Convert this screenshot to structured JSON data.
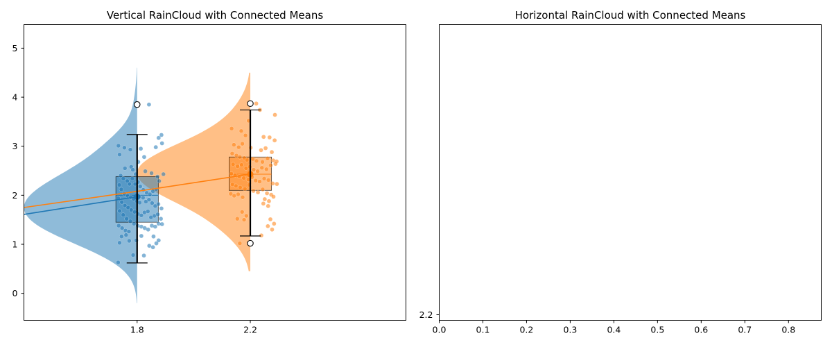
{
  "chart_data": [
    {
      "type": "raincloud",
      "orientation": "vertical",
      "title": "Vertical RainCloud with Connected Means",
      "x_ticks": [
        "1.8",
        "2.2"
      ],
      "xlim": [
        1.4,
        2.75
      ],
      "ylim": [
        -0.55,
        5.48
      ],
      "y_ticks": [
        "0",
        "1",
        "2",
        "3",
        "4",
        "5"
      ],
      "colors": [
        "#1f77b4",
        "#ff7f0e"
      ],
      "groups": [
        {
          "x": 1.8,
          "color": "#1f77b4",
          "mean": 1.97,
          "box": {
            "q1": 1.45,
            "median": 2.0,
            "q3": 2.38,
            "whisker_low": 0.62,
            "whisker_high": 3.24
          },
          "outliers": [
            3.85
          ],
          "violin_ylim": [
            -0.2,
            4.6
          ],
          "points": [
            [
              1.734,
              3.01
            ],
            [
              1.776,
              2.93
            ],
            [
              1.866,
              2.98
            ],
            [
              1.886,
              3.23
            ],
            [
              1.888,
              3.06
            ],
            [
              1.755,
              2.97
            ],
            [
              1.738,
              2.83
            ],
            [
              1.813,
              2.95
            ],
            [
              1.825,
              2.78
            ],
            [
              1.876,
              3.17
            ],
            [
              1.779,
              2.58
            ],
            [
              1.757,
              2.55
            ],
            [
              1.785,
              2.52
            ],
            [
              1.804,
              2.68
            ],
            [
              1.851,
              2.45
            ],
            [
              1.872,
              2.38
            ],
            [
              1.893,
              2.43
            ],
            [
              1.742,
              2.4
            ],
            [
              1.751,
              2.34
            ],
            [
              1.765,
              2.29
            ],
            [
              1.773,
              2.23
            ],
            [
              1.783,
              2.34
            ],
            [
              1.795,
              2.43
            ],
            [
              1.803,
              2.27
            ],
            [
              1.811,
              2.18
            ],
            [
              1.822,
              2.11
            ],
            [
              1.834,
              2.05
            ],
            [
              1.845,
              2.02
            ],
            [
              1.856,
              2.08
            ],
            [
              1.867,
              2.12
            ],
            [
              1.878,
              2.29
            ],
            [
              1.737,
              2.21
            ],
            [
              1.744,
              2.12
            ],
            [
              1.755,
              2.03
            ],
            [
              1.766,
              1.99
            ],
            [
              1.777,
              1.96
            ],
            [
              1.788,
              1.92
            ],
            [
              1.799,
              1.88
            ],
            [
              1.809,
              1.85
            ],
            [
              1.821,
              1.95
            ],
            [
              1.831,
              1.87
            ],
            [
              1.842,
              1.91
            ],
            [
              1.853,
              1.84
            ],
            [
              1.864,
              1.78
            ],
            [
              1.875,
              1.82
            ],
            [
              1.886,
              1.73
            ],
            [
              1.733,
              1.94
            ],
            [
              1.746,
              1.86
            ],
            [
              1.757,
              1.79
            ],
            [
              1.768,
              1.75
            ],
            [
              1.779,
              1.7
            ],
            [
              1.791,
              1.66
            ],
            [
              1.803,
              1.62
            ],
            [
              1.815,
              1.59
            ],
            [
              1.826,
              1.65
            ],
            [
              1.838,
              1.67
            ],
            [
              1.849,
              1.55
            ],
            [
              1.861,
              1.58
            ],
            [
              1.873,
              1.61
            ],
            [
              1.884,
              1.52
            ],
            [
              1.738,
              1.68
            ],
            [
              1.751,
              1.6
            ],
            [
              1.763,
              1.52
            ],
            [
              1.776,
              1.47
            ],
            [
              1.789,
              1.42
            ],
            [
              1.802,
              1.38
            ],
            [
              1.815,
              1.36
            ],
            [
              1.827,
              1.33
            ],
            [
              1.839,
              1.3
            ],
            [
              1.852,
              1.38
            ],
            [
              1.864,
              1.36
            ],
            [
              1.876,
              1.42
            ],
            [
              1.888,
              1.41
            ],
            [
              1.735,
              1.38
            ],
            [
              1.747,
              1.33
            ],
            [
              1.759,
              1.28
            ],
            [
              1.771,
              1.26
            ],
            [
              1.745,
              1.16
            ],
            [
              1.761,
              1.19
            ],
            [
              1.797,
              1.08
            ],
            [
              1.815,
              1.17
            ],
            [
              1.858,
              1.16
            ],
            [
              1.876,
              1.08
            ],
            [
              1.738,
              1.03
            ],
            [
              1.772,
              1.07
            ],
            [
              1.843,
              0.97
            ],
            [
              1.856,
              0.94
            ],
            [
              1.868,
              1.02
            ],
            [
              1.786,
              0.78
            ],
            [
              1.824,
              0.77
            ],
            [
              1.733,
              0.63
            ],
            [
              1.842,
              3.85
            ],
            [
              1.829,
              2.49
            ],
            [
              1.793,
              2.23
            ],
            [
              1.807,
              1.97
            ]
          ]
        },
        {
          "x": 2.2,
          "color": "#ff7f0e",
          "mean": 2.43,
          "box": {
            "q1": 2.1,
            "median": 2.43,
            "q3": 2.78,
            "whisker_low": 1.17,
            "whisker_high": 3.74
          },
          "outliers": [
            3.87,
            1.02
          ],
          "violin_ylim": [
            0.45,
            4.5
          ],
          "points": [
            [
              2.221,
              3.87
            ],
            [
              2.234,
              3.74
            ],
            [
              2.287,
              3.64
            ],
            [
              2.194,
              3.52
            ],
            [
              2.134,
              3.36
            ],
            [
              2.168,
              3.31
            ],
            [
              2.183,
              3.22
            ],
            [
              2.247,
              3.19
            ],
            [
              2.268,
              3.18
            ],
            [
              2.286,
              3.12
            ],
            [
              2.142,
              3.03
            ],
            [
              2.159,
              2.98
            ],
            [
              2.172,
              3.05
            ],
            [
              2.201,
              2.97
            ],
            [
              2.238,
              2.92
            ],
            [
              2.254,
              2.96
            ],
            [
              2.276,
              2.88
            ],
            [
              2.136,
              2.85
            ],
            [
              2.151,
              2.81
            ],
            [
              2.163,
              2.78
            ],
            [
              2.179,
              2.76
            ],
            [
              2.188,
              2.72
            ],
            [
              2.209,
              2.74
            ],
            [
              2.222,
              2.7
            ],
            [
              2.243,
              2.68
            ],
            [
              2.261,
              2.75
            ],
            [
              2.281,
              2.71
            ],
            [
              2.293,
              2.69
            ],
            [
              2.139,
              2.63
            ],
            [
              2.155,
              2.59
            ],
            [
              2.169,
              2.62
            ],
            [
              2.185,
              2.55
            ],
            [
              2.198,
              2.58
            ],
            [
              2.212,
              2.52
            ],
            [
              2.226,
              2.49
            ],
            [
              2.241,
              2.56
            ],
            [
              2.257,
              2.53
            ],
            [
              2.272,
              2.61
            ],
            [
              2.289,
              2.64
            ],
            [
              2.133,
              2.44
            ],
            [
              2.146,
              2.41
            ],
            [
              2.161,
              2.38
            ],
            [
              2.177,
              2.35
            ],
            [
              2.193,
              2.32
            ],
            [
              2.206,
              2.37
            ],
            [
              2.219,
              2.3
            ],
            [
              2.233,
              2.28
            ],
            [
              2.249,
              2.34
            ],
            [
              2.264,
              2.31
            ],
            [
              2.279,
              2.24
            ],
            [
              2.294,
              2.23
            ],
            [
              2.137,
              2.22
            ],
            [
              2.149,
              2.19
            ],
            [
              2.164,
              2.16
            ],
            [
              2.181,
              2.13
            ],
            [
              2.196,
              2.21
            ],
            [
              2.211,
              2.09
            ],
            [
              2.227,
              2.06
            ],
            [
              2.244,
              2.12
            ],
            [
              2.259,
              2.04
            ],
            [
              2.274,
              2.01
            ],
            [
              2.131,
              2.03
            ],
            [
              2.143,
              1.99
            ],
            [
              2.157,
              2.02
            ],
            [
              2.173,
              1.96
            ],
            [
              2.251,
              1.92
            ],
            [
              2.266,
              1.88
            ],
            [
              2.282,
              1.97
            ],
            [
              2.246,
              1.83
            ],
            [
              2.263,
              1.78
            ],
            [
              2.171,
              1.66
            ],
            [
              2.186,
              1.58
            ],
            [
              2.154,
              1.52
            ],
            [
              2.178,
              1.5
            ],
            [
              2.271,
              1.51
            ],
            [
              2.284,
              1.42
            ],
            [
              2.262,
              1.37
            ],
            [
              2.277,
              1.3
            ],
            [
              2.239,
              1.18
            ],
            [
              2.163,
              1.02
            ]
          ]
        }
      ],
      "connected_means": [
        {
          "color": "#1f77b4",
          "x": [
            1.4,
            1.8
          ],
          "y": [
            1.61,
            1.97
          ]
        },
        {
          "color": "#ff7f0e",
          "x": [
            1.4,
            1.8,
            2.2
          ],
          "y": [
            1.75,
            2.08,
            2.43
          ]
        }
      ]
    },
    {
      "type": "raincloud",
      "orientation": "horizontal",
      "title": "Horizontal RainCloud with Connected Means",
      "xlim": [
        0.0,
        0.875
      ],
      "x_ticks": [
        "0.0",
        "0.1",
        "0.2",
        "0.3",
        "0.4",
        "0.5",
        "0.6",
        "0.7",
        "0.8"
      ],
      "y_ticks": [
        "2.2"
      ],
      "groups": []
    }
  ]
}
